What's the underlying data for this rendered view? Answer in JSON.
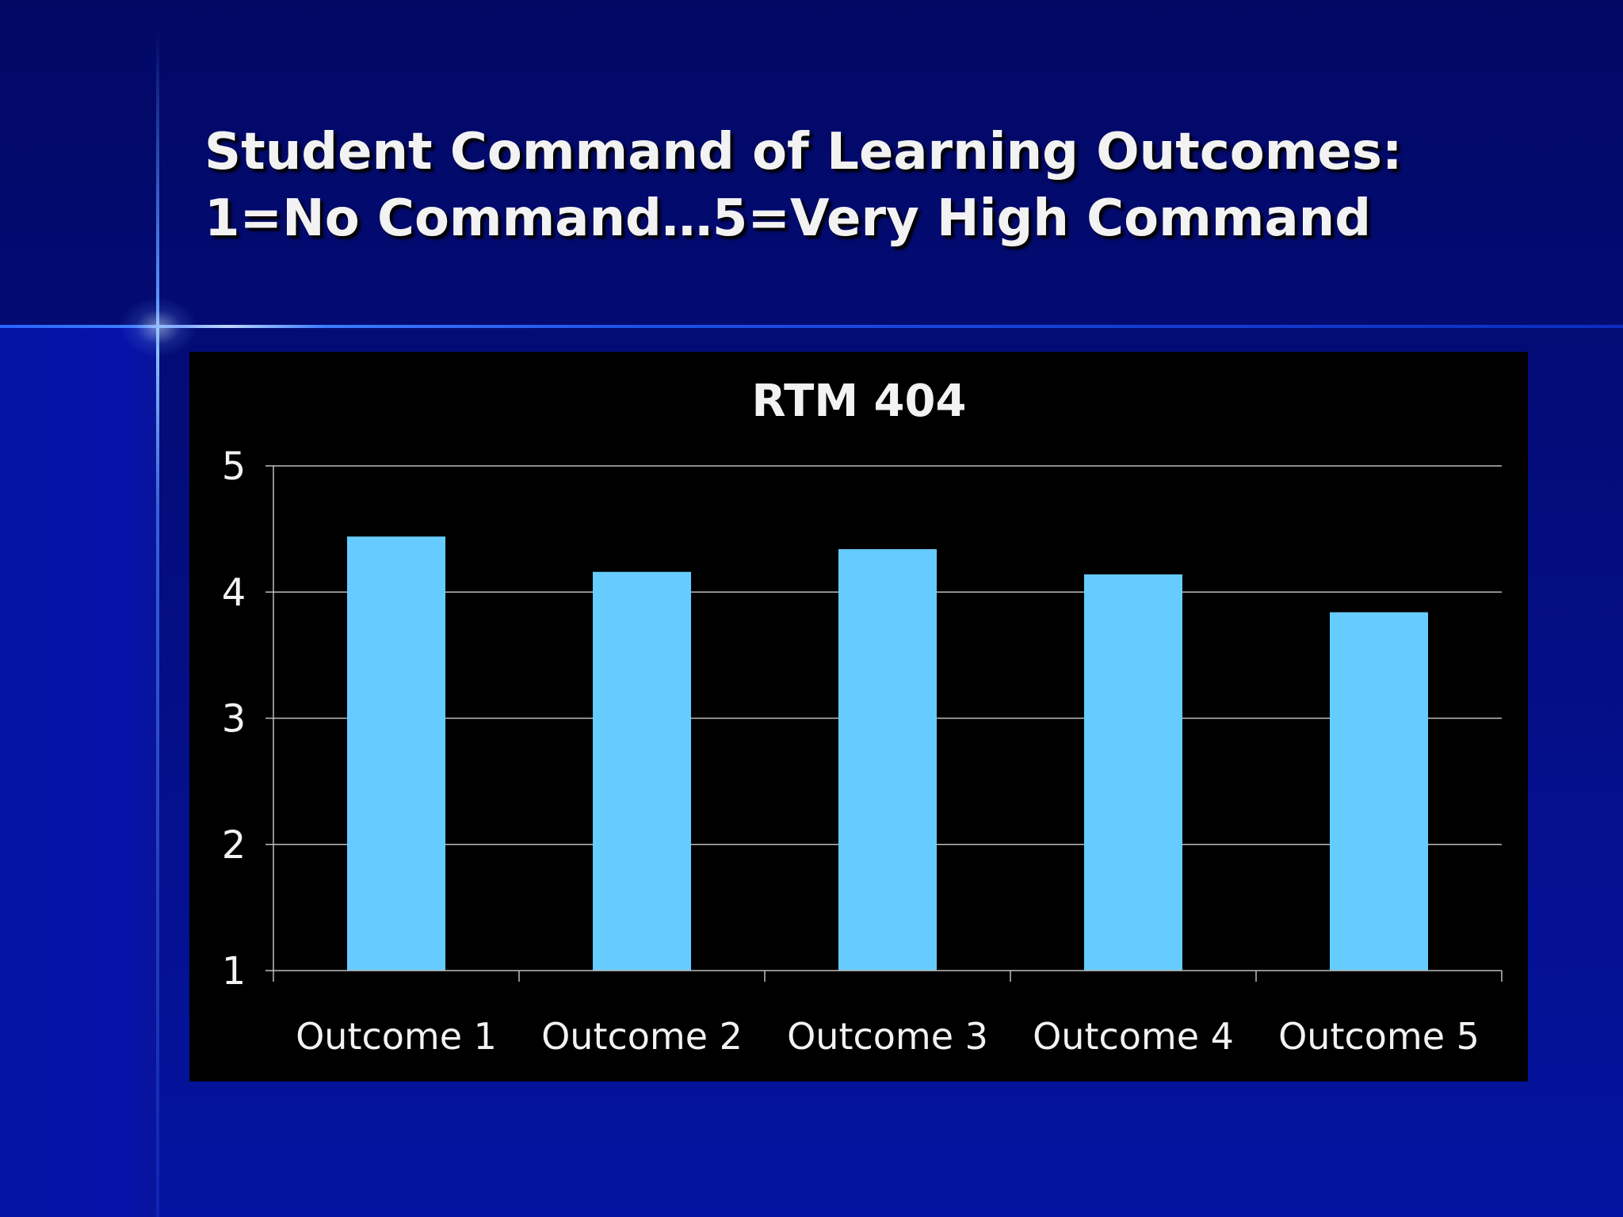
{
  "slide": {
    "title_line1": "Student Command of Learning Outcomes:",
    "title_line2": "1=No Command…5=Very High Command"
  },
  "colors": {
    "background": "#030b73",
    "bar": "#66ccff",
    "chart_background": "#000000",
    "text": "#f2f2f2"
  },
  "chart_data": {
    "type": "bar",
    "title": "RTM 404",
    "categories": [
      "Outcome 1",
      "Outcome 2",
      "Outcome 3",
      "Outcome 4",
      "Outcome 5"
    ],
    "values": [
      4.44,
      4.16,
      4.34,
      4.14,
      3.84
    ],
    "ylim": [
      1,
      5
    ],
    "yticks": [
      1,
      2,
      3,
      4,
      5
    ],
    "grid": true,
    "legend": "none"
  }
}
